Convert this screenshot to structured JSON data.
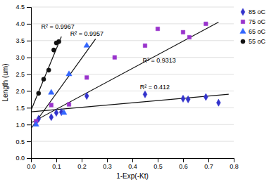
{
  "chart_data": {
    "type": "scatter",
    "xlabel": "1-Exp(-Kt)",
    "ylabel": "Length (um)",
    "xlim": [
      0,
      0.8
    ],
    "ylim": [
      0,
      4.5
    ],
    "xticks": [
      {
        "value": 0.0,
        "label": "0.0"
      },
      0.1,
      0.2,
      0.3,
      0.4,
      0.5,
      0.6,
      0.7,
      0.8
    ],
    "yticks": [
      {
        "value": 0,
        "label": "0.0"
      },
      0.5,
      {
        "value": 1.0,
        "label": "1.0"
      },
      1.5,
      {
        "value": 2.0,
        "label": "2.0"
      },
      2.5,
      {
        "value": 3.0,
        "label": "3.0"
      },
      3.5,
      {
        "value": 4.0,
        "label": "4.0"
      },
      4.5
    ],
    "grid": "y",
    "legend": "upper right",
    "series": [
      {
        "name": "85 oC",
        "color": "#3333cc",
        "marker": "diamond",
        "x": [
          0.03,
          0.08,
          0.1,
          0.12,
          0.22,
          0.45,
          0.6,
          0.62,
          0.69,
          0.74
        ],
        "values": [
          1.17,
          1.22,
          1.35,
          1.37,
          1.85,
          1.9,
          1.77,
          1.75,
          1.82,
          1.65
        ]
      },
      {
        "name": "75 oC",
        "color": "#9933cc",
        "marker": "square",
        "x": [
          0.02,
          0.08,
          0.15,
          0.22,
          0.33,
          0.45,
          0.5,
          0.6,
          0.625,
          0.69
        ],
        "values": [
          1.1,
          1.58,
          1.6,
          2.4,
          3.0,
          3.35,
          3.85,
          3.75,
          3.6,
          4.0
        ]
      },
      {
        "name": "65 oC",
        "color": "#3366ff",
        "marker": "triangle",
        "x": [
          0.02,
          0.08,
          0.13,
          0.15,
          0.22
        ],
        "values": [
          1.0,
          1.95,
          1.35,
          2.5,
          3.35
        ]
      },
      {
        "name": "55 oC",
        "color": "#111111",
        "marker": "circle",
        "x": [
          0.03,
          0.05,
          0.07,
          0.09,
          0.1,
          0.11
        ],
        "values": [
          1.93,
          2.35,
          2.62,
          3.22,
          3.43,
          3.47
        ]
      }
    ],
    "trendlines": [
      {
        "type": "line",
        "color": "#111111",
        "x": [
          0.0,
          0.78
        ],
        "values": [
          1.38,
          1.9
        ]
      },
      {
        "type": "line",
        "color": "#111111",
        "x": [
          0.0,
          0.74
        ],
        "values": [
          1.05,
          4.05
        ]
      },
      {
        "type": "line",
        "color": "#111111",
        "x": [
          0.0,
          0.255
        ],
        "values": [
          0.88,
          3.55
        ]
      },
      {
        "type": "line",
        "color": "#111111",
        "x": [
          0.0,
          0.12
        ],
        "values": [
          1.42,
          3.62
        ]
      }
    ],
    "annotations": [
      {
        "text": "R² = 0.412",
        "x": 0.43,
        "y": 2.03
      },
      {
        "text": "R² = 0.9313",
        "x": 0.44,
        "y": 2.82
      },
      {
        "text": "R² = 0.9957",
        "x": 0.155,
        "y": 3.62
      },
      {
        "text": "R² = 0.9967",
        "x": 0.04,
        "y": 3.82
      }
    ]
  }
}
